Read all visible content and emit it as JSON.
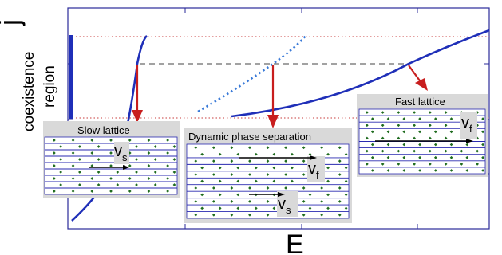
{
  "figure": {
    "y_axis_label": "j",
    "x_axis_label": "E",
    "region_label_line1": "coexistence",
    "region_label_line2": "region"
  },
  "insets": {
    "slow": {
      "title": "Slow lattice",
      "velocity": "v",
      "velocity_sub": "s"
    },
    "dynamic": {
      "title": "Dynamic phase separation",
      "velocity_fast": "v",
      "velocity_fast_sub": "f",
      "velocity_slow": "v",
      "velocity_slow_sub": "s"
    },
    "fast": {
      "title": "Fast lattice",
      "velocity": "v",
      "velocity_sub": "f"
    }
  },
  "colors": {
    "curve": "#1f2fb8",
    "dotted_curve": "#3a7ad8",
    "arrow": "#c81e1e",
    "grid_line": "#2a2ab0",
    "dot": "#1e6b1e",
    "panel_bg": "#d9d9d9",
    "inset_bg": "#ffffff"
  }
}
